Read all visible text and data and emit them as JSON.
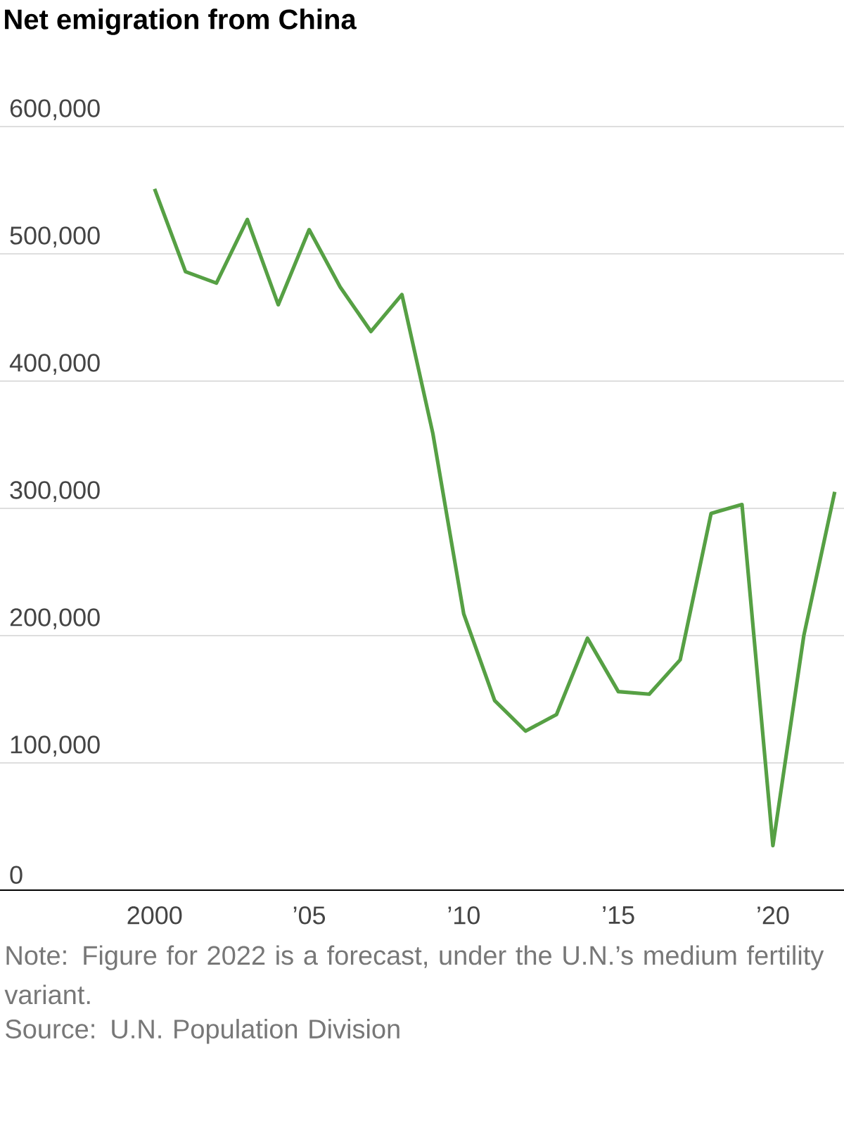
{
  "chart_data": {
    "type": "line",
    "title": "Net emigration from China",
    "x": [
      2000,
      2001,
      2002,
      2003,
      2004,
      2005,
      2006,
      2007,
      2008,
      2009,
      2010,
      2011,
      2012,
      2013,
      2014,
      2015,
      2016,
      2017,
      2018,
      2019,
      2020,
      2021,
      2022
    ],
    "series": [
      {
        "color": "#56a044",
        "values": [
          551000,
          486000,
          477000,
          527000,
          460000,
          519000,
          474000,
          439000,
          468000,
          359000,
          217000,
          149000,
          125000,
          138000,
          198000,
          156000,
          154000,
          181000,
          296000,
          303000,
          35000,
          200000,
          313000
        ]
      }
    ],
    "xlim": [
      1995,
      2022.3
    ],
    "xticks": [
      2000,
      {
        "value": 2005,
        "label": "’05"
      },
      {
        "value": 2010,
        "label": "’10"
      },
      {
        "value": 2015,
        "label": "’15"
      },
      {
        "value": 2020,
        "label": "’20"
      }
    ],
    "ylim": [
      0,
      600000
    ],
    "yticks": [
      0,
      {
        "value": 100000,
        "label": "100,000"
      },
      {
        "value": 200000,
        "label": "200,000"
      },
      {
        "value": 300000,
        "label": "300,000"
      },
      {
        "value": 400000,
        "label": "400,000"
      },
      {
        "value": 500000,
        "label": "500,000"
      },
      {
        "value": 600000,
        "label": "600,000"
      }
    ],
    "grid": "y",
    "marker": "none",
    "line_style": "solid",
    "annotations": [
      "Note: Figure for 2022 is a forecast, under the U.N.’s medium fertility variant.",
      "Source: U.N. Population Division"
    ]
  }
}
